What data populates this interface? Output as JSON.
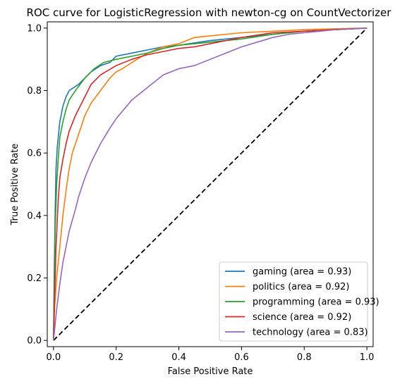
{
  "chart_data": {
    "type": "line",
    "title": "ROC curve for LogisticRegression with newton-cg on CountVectorizer",
    "xlabel": "False Positive Rate",
    "ylabel": "True Positive Rate",
    "xlim": [
      -0.02,
      1.02
    ],
    "ylim": [
      -0.02,
      1.02
    ],
    "xticks": [
      0.0,
      0.2,
      0.4,
      0.6,
      0.8,
      1.0
    ],
    "xtick_labels": [
      "0.0",
      "0.2",
      "0.4",
      "0.6",
      "0.8",
      "1.0"
    ],
    "yticks": [
      0.0,
      0.2,
      0.4,
      0.6,
      0.8,
      1.0
    ],
    "ytick_labels": [
      "0.0",
      "0.2",
      "0.4",
      "0.6",
      "0.8",
      "1.0"
    ],
    "grid": false,
    "legend_position": "lower-right",
    "diagonal": {
      "points": [
        [
          0,
          0
        ],
        [
          1,
          1
        ]
      ],
      "color": "#000000",
      "style": "dashed"
    },
    "series": [
      {
        "name": "gaming (area = 0.93)",
        "color": "#1f77b4",
        "points": [
          [
            0,
            0
          ],
          [
            0.002,
            0.2
          ],
          [
            0.005,
            0.4
          ],
          [
            0.008,
            0.55
          ],
          [
            0.012,
            0.62
          ],
          [
            0.02,
            0.7
          ],
          [
            0.03,
            0.75
          ],
          [
            0.04,
            0.78
          ],
          [
            0.05,
            0.8
          ],
          [
            0.08,
            0.82
          ],
          [
            0.1,
            0.84
          ],
          [
            0.12,
            0.86
          ],
          [
            0.15,
            0.88
          ],
          [
            0.18,
            0.89
          ],
          [
            0.2,
            0.91
          ],
          [
            0.25,
            0.92
          ],
          [
            0.3,
            0.93
          ],
          [
            0.35,
            0.94
          ],
          [
            0.4,
            0.945
          ],
          [
            0.5,
            0.96
          ],
          [
            0.6,
            0.97
          ],
          [
            0.7,
            0.98
          ],
          [
            0.8,
            0.99
          ],
          [
            0.9,
            0.995
          ],
          [
            1.0,
            1.0
          ]
        ]
      },
      {
        "name": "politics (area = 0.92)",
        "color": "#ff7f0e",
        "points": [
          [
            0,
            0
          ],
          [
            0.003,
            0.1
          ],
          [
            0.01,
            0.2
          ],
          [
            0.02,
            0.3
          ],
          [
            0.03,
            0.4
          ],
          [
            0.04,
            0.48
          ],
          [
            0.05,
            0.55
          ],
          [
            0.06,
            0.6
          ],
          [
            0.08,
            0.66
          ],
          [
            0.1,
            0.72
          ],
          [
            0.12,
            0.76
          ],
          [
            0.15,
            0.8
          ],
          [
            0.18,
            0.84
          ],
          [
            0.2,
            0.86
          ],
          [
            0.22,
            0.87
          ],
          [
            0.25,
            0.89
          ],
          [
            0.3,
            0.92
          ],
          [
            0.35,
            0.94
          ],
          [
            0.4,
            0.95
          ],
          [
            0.45,
            0.97
          ],
          [
            0.5,
            0.975
          ],
          [
            0.6,
            0.985
          ],
          [
            0.7,
            0.99
          ],
          [
            0.8,
            0.995
          ],
          [
            0.9,
            0.998
          ],
          [
            1.0,
            1.0
          ]
        ]
      },
      {
        "name": "programming (area = 0.93)",
        "color": "#2ca02c",
        "points": [
          [
            0,
            0
          ],
          [
            0.002,
            0.15
          ],
          [
            0.005,
            0.35
          ],
          [
            0.01,
            0.5
          ],
          [
            0.015,
            0.58
          ],
          [
            0.02,
            0.65
          ],
          [
            0.03,
            0.7
          ],
          [
            0.04,
            0.74
          ],
          [
            0.05,
            0.77
          ],
          [
            0.07,
            0.8
          ],
          [
            0.1,
            0.84
          ],
          [
            0.13,
            0.87
          ],
          [
            0.16,
            0.89
          ],
          [
            0.2,
            0.9
          ],
          [
            0.25,
            0.91
          ],
          [
            0.3,
            0.92
          ],
          [
            0.35,
            0.935
          ],
          [
            0.4,
            0.945
          ],
          [
            0.5,
            0.955
          ],
          [
            0.6,
            0.965
          ],
          [
            0.7,
            0.98
          ],
          [
            0.8,
            0.99
          ],
          [
            0.9,
            0.995
          ],
          [
            1.0,
            1.0
          ]
        ]
      },
      {
        "name": "science (area = 0.92)",
        "color": "#d62728",
        "points": [
          [
            0,
            0
          ],
          [
            0.003,
            0.12
          ],
          [
            0.008,
            0.3
          ],
          [
            0.015,
            0.45
          ],
          [
            0.02,
            0.52
          ],
          [
            0.03,
            0.58
          ],
          [
            0.04,
            0.63
          ],
          [
            0.05,
            0.67
          ],
          [
            0.07,
            0.72
          ],
          [
            0.1,
            0.78
          ],
          [
            0.12,
            0.82
          ],
          [
            0.15,
            0.85
          ],
          [
            0.2,
            0.88
          ],
          [
            0.25,
            0.9
          ],
          [
            0.3,
            0.915
          ],
          [
            0.35,
            0.925
          ],
          [
            0.4,
            0.935
          ],
          [
            0.45,
            0.94
          ],
          [
            0.5,
            0.95
          ],
          [
            0.55,
            0.96
          ],
          [
            0.6,
            0.97
          ],
          [
            0.7,
            0.985
          ],
          [
            0.8,
            0.99
          ],
          [
            0.9,
            0.995
          ],
          [
            1.0,
            1.0
          ]
        ]
      },
      {
        "name": "technology (area = 0.83)",
        "color": "#9467bd",
        "points": [
          [
            0,
            0
          ],
          [
            0.005,
            0.05
          ],
          [
            0.01,
            0.1
          ],
          [
            0.02,
            0.18
          ],
          [
            0.03,
            0.25
          ],
          [
            0.04,
            0.3
          ],
          [
            0.05,
            0.35
          ],
          [
            0.07,
            0.42
          ],
          [
            0.08,
            0.46
          ],
          [
            0.1,
            0.52
          ],
          [
            0.12,
            0.57
          ],
          [
            0.15,
            0.63
          ],
          [
            0.18,
            0.68
          ],
          [
            0.2,
            0.71
          ],
          [
            0.25,
            0.77
          ],
          [
            0.3,
            0.81
          ],
          [
            0.35,
            0.85
          ],
          [
            0.4,
            0.87
          ],
          [
            0.45,
            0.88
          ],
          [
            0.5,
            0.9
          ],
          [
            0.55,
            0.92
          ],
          [
            0.6,
            0.94
          ],
          [
            0.65,
            0.955
          ],
          [
            0.7,
            0.97
          ],
          [
            0.75,
            0.98
          ],
          [
            0.8,
            0.985
          ],
          [
            0.85,
            0.99
          ],
          [
            0.9,
            0.995
          ],
          [
            1.0,
            1.0
          ]
        ]
      }
    ]
  }
}
